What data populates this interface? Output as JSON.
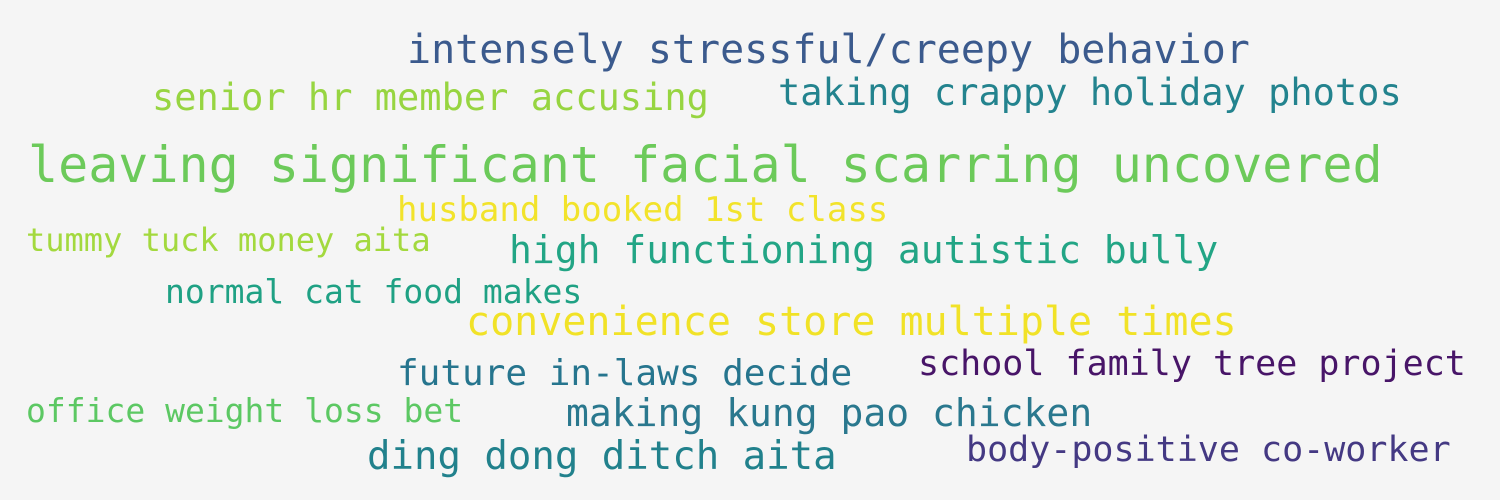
{
  "background_color": "#f5f5f5",
  "phrases": [
    {
      "text": "intensely stressful/creepy behavior",
      "color": "#3b5a8d"
    },
    {
      "text": "senior hr member accusing",
      "color": "#97d541"
    },
    {
      "text": "taking crappy holiday photos",
      "color": "#23838e"
    },
    {
      "text": "leaving significant facial scarring uncovered",
      "color": "#6cca5a"
    },
    {
      "text": "husband booked 1st class",
      "color": "#f2e32b"
    },
    {
      "text": "tummy tuck money aita",
      "color": "#a3d93e"
    },
    {
      "text": "high functioning autistic bully",
      "color": "#22a585"
    },
    {
      "text": "normal cat food makes",
      "color": "#1fa184"
    },
    {
      "text": "convenience store multiple times",
      "color": "#f1e227"
    },
    {
      "text": "school family tree project",
      "color": "#481568"
    },
    {
      "text": "future in-laws decide",
      "color": "#26758e"
    },
    {
      "text": "office weight loss bet",
      "color": "#5cc863"
    },
    {
      "text": "making kung pao chicken",
      "color": "#2a788e"
    },
    {
      "text": "body-positive co-worker",
      "color": "#443983"
    },
    {
      "text": "ding dong ditch aita",
      "color": "#21818c"
    }
  ]
}
